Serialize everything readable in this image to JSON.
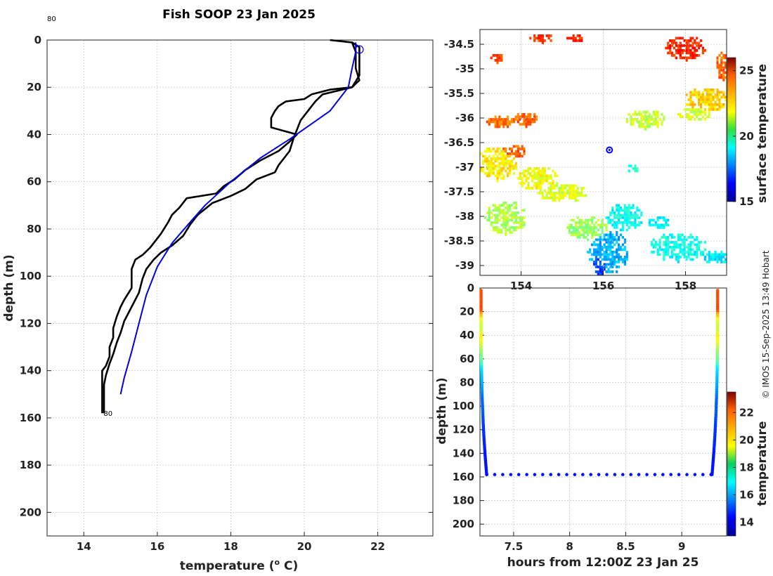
{
  "title": "Fish SOOP 23 Jan 2025",
  "credit": "© IMOS 15-Sep-2025 13:49 Hobart",
  "chart_data": [
    {
      "type": "line",
      "name": "profile",
      "xlabel": "temperature (o C)",
      "xlabel_main": "temperature (",
      "xlabel_sup": "o",
      "xlabel_end": " C)",
      "ylabel": "depth (m)",
      "xlim": [
        13,
        23.5
      ],
      "ylim": [
        210,
        0
      ],
      "xticks": [
        14,
        16,
        18,
        20,
        22
      ],
      "yticks": [
        0,
        20,
        40,
        60,
        80,
        100,
        120,
        140,
        160,
        180,
        200
      ],
      "grid": true,
      "annotations": [
        {
          "text": "80",
          "x": 13,
          "y": -5
        },
        {
          "text": "80",
          "x": 14.5,
          "y": 158
        }
      ],
      "marker": {
        "x": 21.5,
        "y": 4,
        "shape": "circle",
        "color": "#0000ff"
      },
      "series": [
        {
          "name": "profile-1",
          "color": "#000000",
          "points": [
            [
              20.7,
              0
            ],
            [
              21.3,
              1
            ],
            [
              21.4,
              5
            ],
            [
              21.4,
              12
            ],
            [
              21.5,
              17
            ],
            [
              21.3,
              20
            ],
            [
              20.7,
              21
            ],
            [
              20.2,
              23
            ],
            [
              20.0,
              25
            ],
            [
              19.5,
              26
            ],
            [
              19.3,
              28
            ],
            [
              19.2,
              30
            ],
            [
              19.1,
              33
            ],
            [
              19.1,
              37
            ],
            [
              19.8,
              40
            ],
            [
              19.6,
              43
            ],
            [
              19.3,
              47
            ],
            [
              18.8,
              51
            ],
            [
              18.4,
              55
            ],
            [
              18.1,
              59
            ],
            [
              17.8,
              62
            ],
            [
              17.6,
              65
            ],
            [
              16.8,
              67
            ],
            [
              16.6,
              71
            ],
            [
              16.4,
              74
            ],
            [
              16.3,
              77
            ],
            [
              16.1,
              82
            ],
            [
              15.8,
              88
            ],
            [
              15.6,
              91
            ],
            [
              15.4,
              93
            ],
            [
              15.3,
              97
            ],
            [
              15.3,
              100
            ],
            [
              15.3,
              105
            ],
            [
              15.1,
              110
            ],
            [
              15.0,
              113
            ],
            [
              14.9,
              117
            ],
            [
              14.8,
              122
            ],
            [
              14.8,
              126
            ],
            [
              14.7,
              130
            ],
            [
              14.7,
              134
            ],
            [
              14.6,
              138
            ],
            [
              14.5,
              140
            ],
            [
              14.5,
              145
            ],
            [
              14.5,
              150
            ],
            [
              14.5,
              158
            ]
          ]
        },
        {
          "name": "profile-2",
          "color": "#000000",
          "points": [
            [
              21.3,
              1
            ],
            [
              21.5,
              3
            ],
            [
              21.5,
              10
            ],
            [
              21.5,
              15
            ],
            [
              21.3,
              20
            ],
            [
              20.5,
              23
            ],
            [
              20.3,
              26
            ],
            [
              20.1,
              30
            ],
            [
              19.9,
              34
            ],
            [
              19.8,
              38
            ],
            [
              19.7,
              42
            ],
            [
              19.6,
              47
            ],
            [
              19.3,
              53
            ],
            [
              19.2,
              56
            ],
            [
              18.7,
              59
            ],
            [
              18.4,
              63
            ],
            [
              18.0,
              66
            ],
            [
              17.5,
              69
            ],
            [
              17.1,
              74
            ],
            [
              16.9,
              78
            ],
            [
              16.7,
              83
            ],
            [
              16.4,
              87
            ],
            [
              16.1,
              90
            ],
            [
              15.9,
              93
            ],
            [
              15.7,
              97
            ],
            [
              15.6,
              101
            ],
            [
              15.5,
              107
            ],
            [
              15.3,
              113
            ],
            [
              15.1,
              119
            ],
            [
              15.0,
              124
            ],
            [
              14.9,
              128
            ],
            [
              14.8,
              133
            ],
            [
              14.7,
              137
            ],
            [
              14.6,
              142
            ],
            [
              14.55,
              146
            ],
            [
              14.55,
              152
            ],
            [
              14.55,
              158
            ]
          ]
        },
        {
          "name": "profile-model",
          "color": "#0000dd",
          "points": [
            [
              21.4,
              1
            ],
            [
              21.4,
              5
            ],
            [
              21.3,
              12
            ],
            [
              21.2,
              20
            ],
            [
              20.7,
              30
            ],
            [
              19.6,
              42
            ],
            [
              18.8,
              50
            ],
            [
              18.0,
              60
            ],
            [
              17.3,
              70
            ],
            [
              16.9,
              77
            ],
            [
              16.4,
              86
            ],
            [
              16.0,
              96
            ],
            [
              15.7,
              108
            ],
            [
              15.5,
              120
            ],
            [
              15.3,
              132
            ],
            [
              15.1,
              143
            ],
            [
              15.0,
              150
            ]
          ]
        }
      ]
    },
    {
      "type": "heatmap",
      "name": "sst-map",
      "xticks": [
        154,
        156,
        158
      ],
      "yticks": [
        -34.5,
        -35,
        -35.5,
        -36,
        -36.5,
        -37,
        -37.5,
        -38,
        -38.5,
        -39
      ],
      "xlim": [
        153.0,
        159.0
      ],
      "ylim": [
        -39.2,
        -34.2
      ],
      "colorbar": {
        "label": "surface temperature",
        "range": [
          15,
          26
        ],
        "ticks": [
          15,
          20,
          25
        ]
      },
      "marker": {
        "lon": 156.15,
        "lat": -36.65
      }
    },
    {
      "type": "scatter",
      "name": "depth-time",
      "xlabel": "hours from 12:00Z 23 Jan 25",
      "ylabel": "depth (m)",
      "xlim": [
        7.2,
        9.4
      ],
      "ylim": [
        210,
        0
      ],
      "xticks": [
        "7.5",
        "8",
        "8.5",
        "9"
      ],
      "yticks": [
        0,
        20,
        40,
        60,
        80,
        100,
        120,
        140,
        160,
        180,
        200
      ],
      "colorbar": {
        "label": "temperature",
        "range": [
          13,
          23.5
        ],
        "ticks": [
          14,
          16,
          18,
          20,
          22
        ]
      },
      "descent": {
        "x_start": 7.21,
        "x_end": 7.26,
        "depth_max": 158
      },
      "ascent": {
        "x_start": 9.27,
        "x_end": 9.32,
        "depth_max": 158
      },
      "bottom_track": {
        "depth": 158,
        "x_start": 7.26,
        "x_end": 9.26,
        "count": 29
      }
    }
  ]
}
